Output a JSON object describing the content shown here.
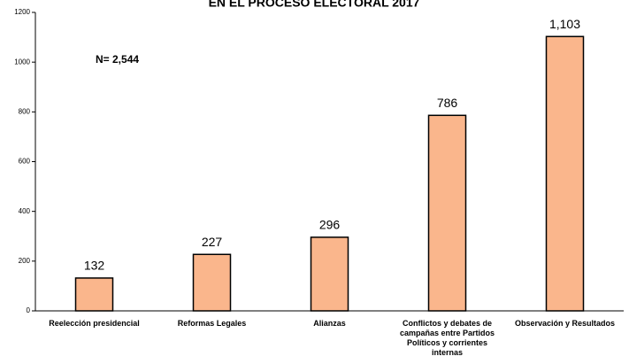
{
  "chart_data": {
    "type": "bar",
    "title": "EN EL PROCESO ELECTORAL 2017",
    "annotation": "N= 2,544",
    "categories": [
      "Reelección presidencial",
      "Reformas Legales",
      "Alianzas",
      "Conflictos y debates de campañas entre Partidos Políticos y corrientes internas",
      "Observación y Resultados"
    ],
    "values": [
      132,
      227,
      296,
      786,
      1103
    ],
    "value_labels": [
      "132",
      "227",
      "296",
      "786",
      "1,103"
    ],
    "color": "#fab68c",
    "ylim": [
      0,
      1200
    ],
    "yticks": [
      0,
      200,
      400,
      600,
      800,
      1000,
      1200
    ],
    "grid": false
  }
}
